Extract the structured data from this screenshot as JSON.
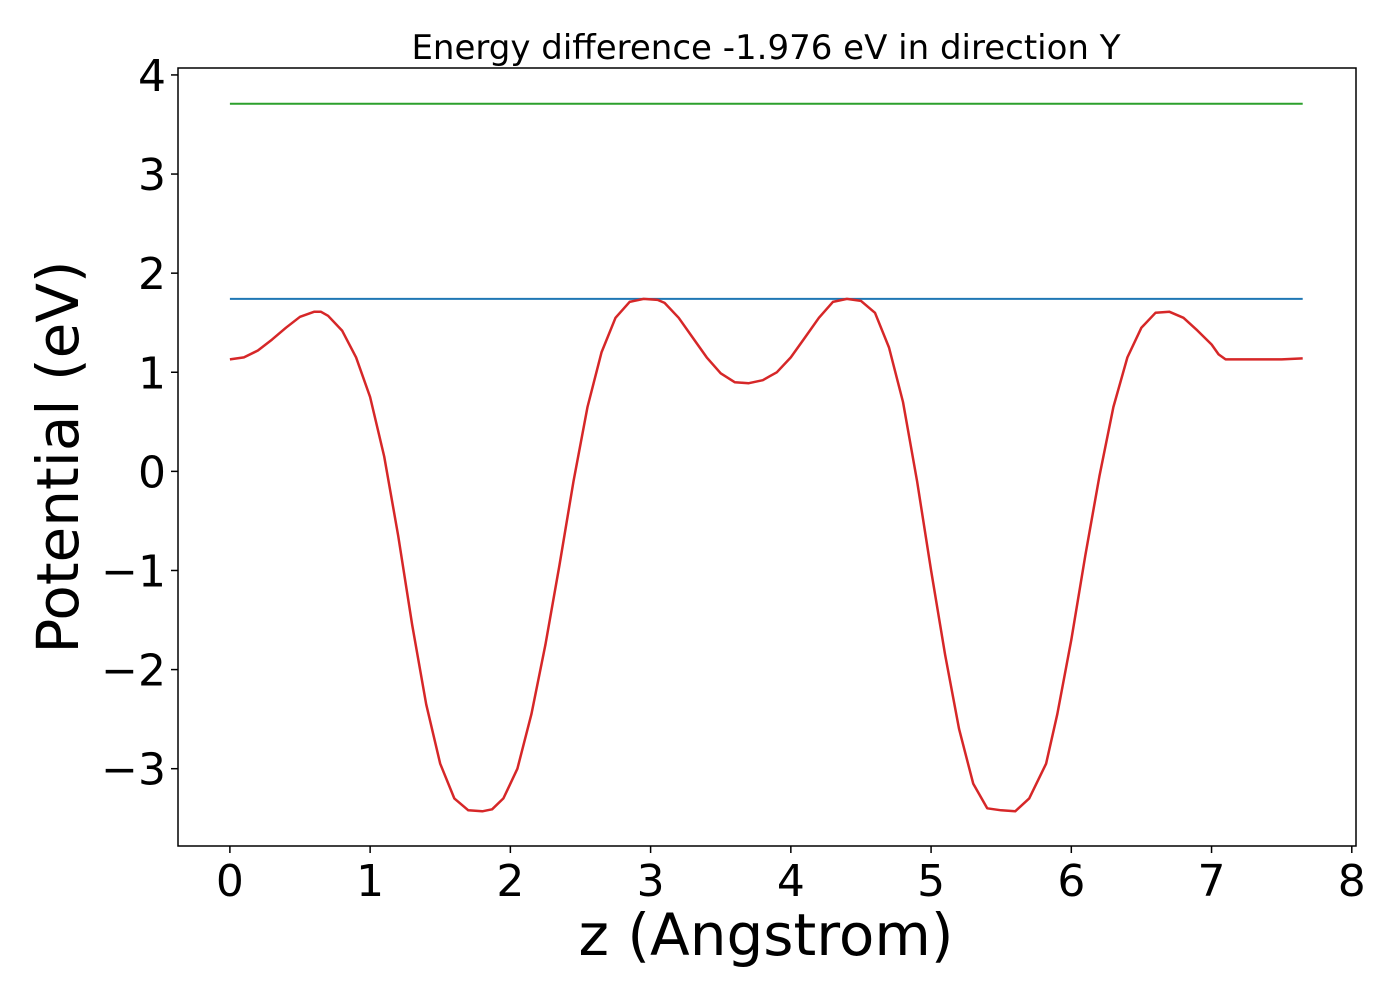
{
  "chart_data": {
    "type": "line",
    "title": "Energy difference -1.976 eV in direction Y",
    "xlabel": "z (Angstrom)",
    "ylabel": "Potential (eV)",
    "xlim": [
      -0.37,
      8.03
    ],
    "ylim": [
      -3.78,
      4.07
    ],
    "xticks": [
      0,
      1,
      2,
      3,
      4,
      5,
      6,
      7,
      8
    ],
    "xtick_labels": [
      "0",
      "1",
      "2",
      "3",
      "4",
      "5",
      "6",
      "7",
      "8"
    ],
    "yticks": [
      -3,
      -2,
      -1,
      0,
      1,
      2,
      3,
      4
    ],
    "ytick_labels": [
      "−3",
      "−2",
      "−1",
      "0",
      "1",
      "2",
      "3",
      "4"
    ],
    "grid": false,
    "series": [
      {
        "color": "#2ca02c",
        "x": [
          0.0,
          7.65
        ],
        "y": [
          3.71,
          3.71
        ]
      },
      {
        "color": "#1f77b4",
        "x": [
          0.0,
          7.65
        ],
        "y": [
          1.74,
          1.74
        ]
      },
      {
        "color": "#d62728",
        "x": [
          0.0,
          0.1,
          0.2,
          0.3,
          0.4,
          0.5,
          0.6,
          0.65,
          0.7,
          0.8,
          0.9,
          1.0,
          1.1,
          1.2,
          1.3,
          1.4,
          1.5,
          1.6,
          1.7,
          1.8,
          1.87,
          1.95,
          2.05,
          2.15,
          2.25,
          2.35,
          2.45,
          2.55,
          2.65,
          2.75,
          2.85,
          2.95,
          3.05,
          3.1,
          3.2,
          3.3,
          3.4,
          3.5,
          3.6,
          3.7,
          3.8,
          3.85,
          3.9,
          4.0,
          4.1,
          4.2,
          4.3,
          4.4,
          4.5,
          4.6,
          4.7,
          4.8,
          4.9,
          5.0,
          5.1,
          5.2,
          5.3,
          5.4,
          5.5,
          5.6,
          5.7,
          5.82,
          5.9,
          6.0,
          6.1,
          6.2,
          6.3,
          6.4,
          6.5,
          6.6,
          6.7,
          6.8,
          6.9,
          7.0,
          7.05,
          7.1,
          7.2,
          7.3,
          7.4,
          7.5,
          7.65
        ],
        "y": [
          1.13,
          1.15,
          1.22,
          1.33,
          1.45,
          1.56,
          1.61,
          1.61,
          1.57,
          1.42,
          1.15,
          0.75,
          0.15,
          -0.65,
          -1.55,
          -2.35,
          -2.95,
          -3.3,
          -3.42,
          -3.43,
          -3.41,
          -3.3,
          -3.0,
          -2.45,
          -1.75,
          -0.95,
          -0.1,
          0.65,
          1.2,
          1.55,
          1.71,
          1.74,
          1.73,
          1.7,
          1.55,
          1.35,
          1.15,
          0.99,
          0.9,
          0.89,
          0.92,
          0.96,
          1.0,
          1.15,
          1.35,
          1.55,
          1.71,
          1.74,
          1.72,
          1.6,
          1.25,
          0.7,
          -0.1,
          -1.0,
          -1.85,
          -2.6,
          -3.15,
          -3.4,
          -3.42,
          -3.43,
          -3.3,
          -2.95,
          -2.45,
          -1.7,
          -0.85,
          -0.05,
          0.65,
          1.15,
          1.45,
          1.6,
          1.61,
          1.55,
          1.42,
          1.28,
          1.18,
          1.13,
          1.13,
          1.13,
          1.13,
          1.13,
          1.14
        ]
      }
    ]
  }
}
